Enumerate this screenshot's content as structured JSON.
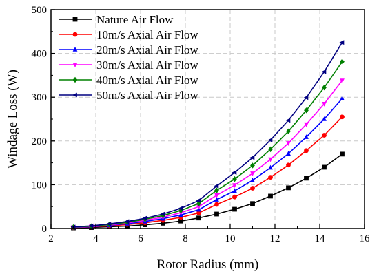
{
  "chart_data": {
    "type": "line",
    "xlabel": "Rotor Radius (mm)",
    "ylabel": "Windage Loss (W)",
    "xlim": [
      2,
      16
    ],
    "ylim": [
      0,
      500
    ],
    "xticks": [
      "2",
      "4",
      "6",
      "8",
      "10",
      "12",
      "14",
      "16"
    ],
    "yticks": [
      "0",
      "100",
      "200",
      "300",
      "400",
      "500"
    ],
    "grid": true,
    "legend_position": "top-left",
    "x": [
      3.0,
      3.8,
      4.6,
      5.4,
      6.2,
      7.0,
      7.8,
      8.6,
      9.4,
      10.2,
      11.0,
      11.8,
      12.6,
      13.4,
      14.2,
      15.0
    ],
    "series": [
      {
        "name": "Nature Air Flow",
        "color": "#000000",
        "marker": "square",
        "values": [
          1.4,
          2.3,
          3.9,
          5.5,
          8.5,
          12,
          17,
          24,
          33,
          44,
          57,
          74,
          93,
          115,
          140,
          170
        ]
      },
      {
        "name": "10m/s Axial Air Flow",
        "color": "#ff0000",
        "marker": "circle",
        "values": [
          2,
          3.6,
          6,
          9,
          13,
          18.5,
          25.5,
          35.5,
          55,
          72,
          92,
          117,
          145,
          178,
          213,
          255
        ]
      },
      {
        "name": "20m/s Axial Air Flow",
        "color": "#0000ff",
        "marker": "triangle-up",
        "values": [
          2.4,
          4,
          7,
          11,
          16,
          22.5,
          31,
          43,
          66,
          86,
          110,
          139,
          171,
          209,
          250,
          297
        ]
      },
      {
        "name": "30m/s Axial Air Flow",
        "color": "#ff00ff",
        "marker": "triangle-down",
        "values": [
          2.7,
          4.6,
          8,
          12.5,
          18.5,
          26,
          36,
          50,
          76,
          99,
          126,
          158,
          195,
          238,
          285,
          338
        ]
      },
      {
        "name": "40m/s Axial Air Flow",
        "color": "#008000",
        "marker": "diamond",
        "values": [
          3,
          5.2,
          9,
          14,
          21,
          29.5,
          41,
          57,
          87,
          113,
          144,
          181,
          222,
          270,
          322,
          381
        ]
      },
      {
        "name": "50m/s Axial Air Flow",
        "color": "#000080",
        "marker": "triangle-left",
        "values": [
          3.5,
          6,
          10.5,
          16,
          23.5,
          33,
          46,
          64,
          97,
          128,
          162,
          202,
          247,
          299,
          358,
          425
        ]
      }
    ]
  }
}
